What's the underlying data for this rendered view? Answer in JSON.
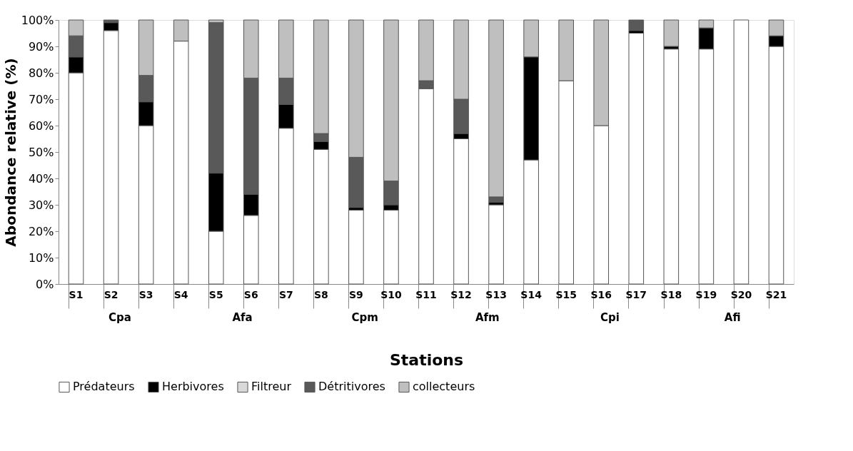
{
  "chart_data": {
    "type": "bar",
    "stacked": true,
    "xlabel": "Stations",
    "ylabel": "Abondance relative (%)",
    "categories": [
      "S1",
      "S2",
      "S3",
      "S4",
      "S5",
      "S6",
      "S7",
      "S8",
      "S9",
      "S10",
      "S11",
      "S12",
      "S13",
      "S14",
      "S15",
      "S16",
      "S17",
      "S18",
      "S19",
      "S20",
      "S21"
    ],
    "series": [
      {
        "name": "Prédateurs",
        "color": "#ffffff",
        "values": [
          80,
          96,
          60,
          92,
          20,
          26,
          59,
          51,
          28,
          28,
          74,
          55,
          30,
          47,
          77,
          60,
          95,
          89,
          89,
          100,
          90
        ]
      },
      {
        "name": "Herbivores",
        "color": "#000000",
        "values": [
          6,
          3,
          9,
          0,
          22,
          8,
          9,
          3,
          1,
          2,
          0,
          2,
          1,
          39,
          0,
          0,
          1,
          1,
          8,
          0,
          4
        ]
      },
      {
        "name": "Filtreur",
        "color": "#d9d9d9",
        "values": [
          0,
          0,
          0,
          0,
          0,
          0,
          0,
          0,
          0,
          0,
          0,
          0,
          0,
          0,
          0,
          0,
          0,
          0,
          0,
          0,
          0
        ]
      },
      {
        "name": "Détritivores",
        "color": "#595959",
        "values": [
          8,
          1,
          10,
          0,
          57,
          44,
          10,
          3,
          19,
          9,
          3,
          13,
          2,
          0,
          0,
          0,
          4,
          0,
          0,
          0,
          0
        ]
      },
      {
        "name": "collecteurs",
        "color": "#bfbfbf",
        "values": [
          6,
          0,
          21,
          8,
          1,
          22,
          22,
          43,
          52,
          61,
          23,
          30,
          67,
          14,
          23,
          40,
          0,
          10,
          3,
          0,
          6
        ]
      }
    ],
    "ylim": [
      0,
      100
    ],
    "yticks": [
      {
        "value": 0,
        "label": "0%"
      },
      {
        "value": 10,
        "label": "10%"
      },
      {
        "value": 20,
        "label": "20%"
      },
      {
        "value": 30,
        "label": "30%"
      },
      {
        "value": 40,
        "label": "40%"
      },
      {
        "value": 50,
        "label": "50%"
      },
      {
        "value": 60,
        "label": "60%"
      },
      {
        "value": 70,
        "label": "70%"
      },
      {
        "value": 80,
        "label": "80%"
      },
      {
        "value": 90,
        "label": "90%"
      },
      {
        "value": 100,
        "label": "100%"
      }
    ],
    "grid": false,
    "legend": "bottom",
    "annotations": [
      "Cpa",
      "Afa",
      "Cpm",
      "Afm",
      "Cpi",
      "Afi"
    ]
  }
}
